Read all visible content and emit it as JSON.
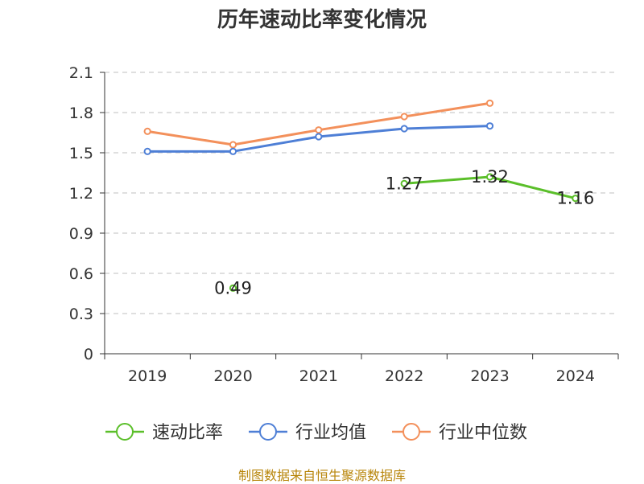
{
  "title": "历年速动比率变化情况",
  "source": "制图数据来自恒生聚源数据库",
  "chart_data": {
    "type": "line",
    "categories": [
      "2019",
      "2020",
      "2021",
      "2022",
      "2023",
      "2024"
    ],
    "ylim": [
      0,
      2.1
    ],
    "yticks": [
      "0",
      "0.3",
      "0.6",
      "0.9",
      "1.2",
      "1.5",
      "1.8",
      "2.1"
    ],
    "grid": true,
    "legend_position": "bottom",
    "series": [
      {
        "name": "速动比率",
        "color": "#5bbf2a",
        "values": [
          null,
          0.49,
          null,
          1.27,
          1.32,
          1.16
        ],
        "labels": [
          "",
          "0.49",
          "",
          "1.27",
          "1.32",
          "1.16"
        ]
      },
      {
        "name": "行业均值",
        "color": "#4e7fd6",
        "values": [
          1.51,
          1.51,
          1.62,
          1.68,
          1.7,
          null
        ]
      },
      {
        "name": "行业中位数",
        "color": "#f3905b",
        "values": [
          1.66,
          1.56,
          1.67,
          1.77,
          1.87,
          null
        ]
      }
    ]
  }
}
